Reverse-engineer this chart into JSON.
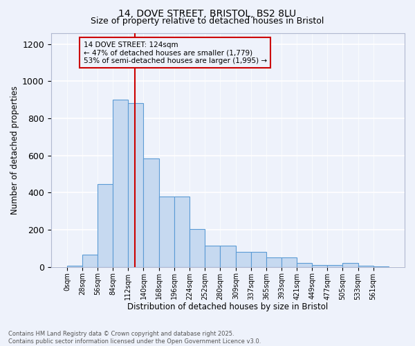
{
  "title_line1": "14, DOVE STREET, BRISTOL, BS2 8LU",
  "title_line2": "Size of property relative to detached houses in Bristol",
  "xlabel": "Distribution of detached houses by size in Bristol",
  "ylabel": "Number of detached properties",
  "annotation_line1": "14 DOVE STREET: 124sqm",
  "annotation_line2": "← 47% of detached houses are smaller (1,779)",
  "annotation_line3": "53% of semi-detached houses are larger (1,995) →",
  "property_size": 124,
  "bin_starts": [
    0,
    28,
    56,
    84,
    112,
    140,
    168,
    196,
    224,
    252,
    280,
    309,
    337,
    365,
    393,
    421,
    449,
    477,
    505,
    533,
    561
  ],
  "bar_heights": [
    5,
    65,
    445,
    900,
    880,
    585,
    380,
    380,
    205,
    115,
    115,
    80,
    80,
    50,
    50,
    20,
    10,
    10,
    20,
    5,
    2
  ],
  "bar_color": "#c6d9f0",
  "bar_edge_color": "#5b9bd5",
  "red_line_color": "#cc0000",
  "background_color": "#eef2fb",
  "grid_color": "#ffffff",
  "ylim": [
    0,
    1260
  ],
  "yticks": [
    0,
    200,
    400,
    600,
    800,
    1000,
    1200
  ],
  "footer_line1": "Contains HM Land Registry data © Crown copyright and database right 2025.",
  "footer_line2": "Contains public sector information licensed under the Open Government Licence v3.0."
}
